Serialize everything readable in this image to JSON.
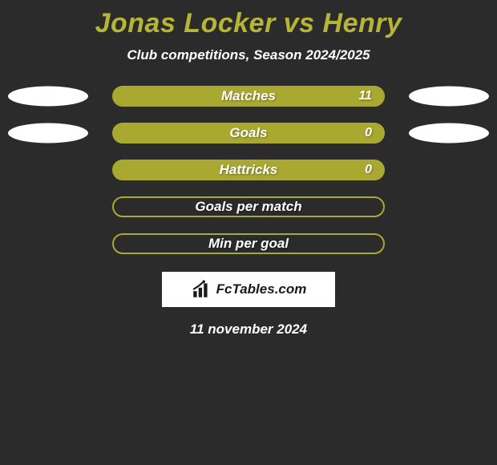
{
  "background_color": "#2b2b2b",
  "title": {
    "text": "Jonas Locker vs Henry",
    "color": "#b6b536"
  },
  "subtitle": {
    "text": "Club competitions, Season 2024/2025",
    "color": "#ffffff"
  },
  "stats": {
    "bar_fill_color": "#a9a830",
    "bar_border_color": "#a9a830",
    "label_color": "#ffffff",
    "value_color": "#ffffff",
    "ellipse_color": "#ffffff",
    "rows": [
      {
        "label": "Matches",
        "value": "11",
        "show_left_ellipse": true,
        "show_right_ellipse": true,
        "filled": true
      },
      {
        "label": "Goals",
        "value": "0",
        "show_left_ellipse": true,
        "show_right_ellipse": true,
        "filled": true
      },
      {
        "label": "Hattricks",
        "value": "0",
        "show_left_ellipse": false,
        "show_right_ellipse": false,
        "filled": true
      },
      {
        "label": "Goals per match",
        "value": "",
        "show_left_ellipse": false,
        "show_right_ellipse": false,
        "filled": false
      },
      {
        "label": "Min per goal",
        "value": "",
        "show_left_ellipse": false,
        "show_right_ellipse": false,
        "filled": false
      }
    ]
  },
  "brand": {
    "box_color": "#ffffff",
    "text": "FcTables.com",
    "text_color": "#1a1a1a",
    "icon_color": "#1a1a1a"
  },
  "date": {
    "text": "11 november 2024",
    "color": "#ffffff"
  }
}
